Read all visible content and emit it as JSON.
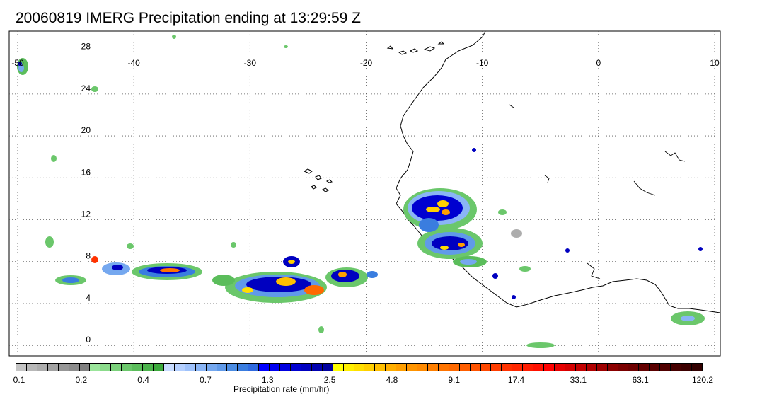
{
  "title": "20060819 IMERG Precipitation ending at 13:29:59 Z",
  "map": {
    "lon_ticks": [
      "-50",
      "-40",
      "-30",
      "-20",
      "-10",
      "0",
      "10"
    ],
    "lat_ticks": [
      "28",
      "24",
      "20",
      "16",
      "12",
      "8",
      "4",
      "0"
    ],
    "lon_range": [
      -50,
      10
    ],
    "lat_range": [
      -1,
      30
    ],
    "grid": "dotted"
  },
  "colorbar": {
    "title": "Precipitation rate (mm/hr)",
    "tick_labels": [
      "0.1",
      "0.2",
      "0.4",
      "0.7",
      "1.3",
      "2.5",
      "4.8",
      "9.1",
      "17.4",
      "33.1",
      "63.1",
      "120.2"
    ],
    "colors": [
      "#c4c4c4",
      "#b8b8b8",
      "#adadad",
      "#a2a2a2",
      "#979797",
      "#8c8c8c",
      "#808080",
      "#9be59b",
      "#8bdb8b",
      "#7bd17b",
      "#6bc76b",
      "#5bbd5b",
      "#4bb34b",
      "#3ba93b",
      "#c8dcff",
      "#b5d0ff",
      "#9fc2fb",
      "#8ab5f5",
      "#75a8ef",
      "#609ae9",
      "#4b8ce3",
      "#3a7ddf",
      "#2f6ae0",
      "#0000ff",
      "#0000f0",
      "#0000e0",
      "#0000d0",
      "#0000c0",
      "#0000b0",
      "#0000a0",
      "#ffff00",
      "#ffef00",
      "#ffdf00",
      "#ffcf00",
      "#ffbf00",
      "#ffaf00",
      "#ff9f00",
      "#ff9500",
      "#ff8a00",
      "#ff7f00",
      "#ff7400",
      "#ff6900",
      "#ff5e00",
      "#ff5300",
      "#ff4800",
      "#ff3d00",
      "#ff3200",
      "#ff2700",
      "#ff1c00",
      "#ff1000",
      "#ff0000",
      "#e60000",
      "#d40000",
      "#c20000",
      "#b00000",
      "#9e0000",
      "#8c0000",
      "#7a0000",
      "#6e0000",
      "#640000",
      "#5a0000",
      "#500000",
      "#460000",
      "#3c0000",
      "#320000"
    ]
  }
}
